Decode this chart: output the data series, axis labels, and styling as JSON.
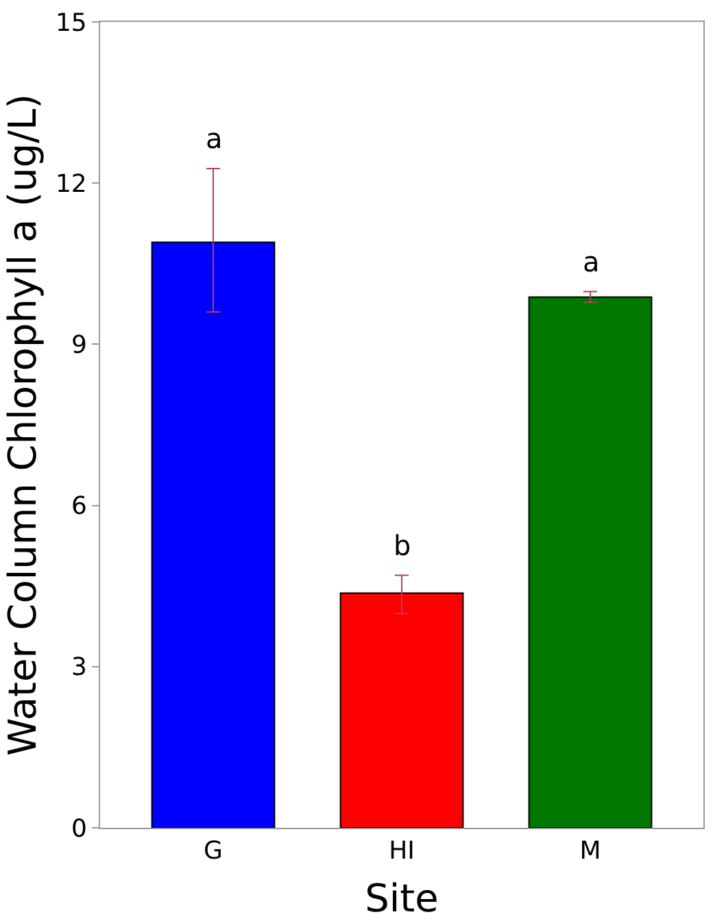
{
  "chart_data": {
    "type": "bar",
    "xlabel": "Site",
    "ylabel": "Water Column Chlorophyll a (ug/L)",
    "categories": [
      "G",
      "HI",
      "M"
    ],
    "values": [
      10.9,
      4.37,
      9.88
    ],
    "colors": [
      "#0000ff",
      "#ff0000",
      "#007700"
    ],
    "errors": [
      [
        9.6,
        12.27
      ],
      [
        3.99,
        4.7
      ],
      [
        9.78,
        9.98
      ]
    ],
    "ylim": [
      0,
      15
    ],
    "yticks": [
      0,
      3,
      6,
      9,
      12,
      15
    ],
    "annotations": [
      "a",
      "b",
      "a"
    ]
  }
}
